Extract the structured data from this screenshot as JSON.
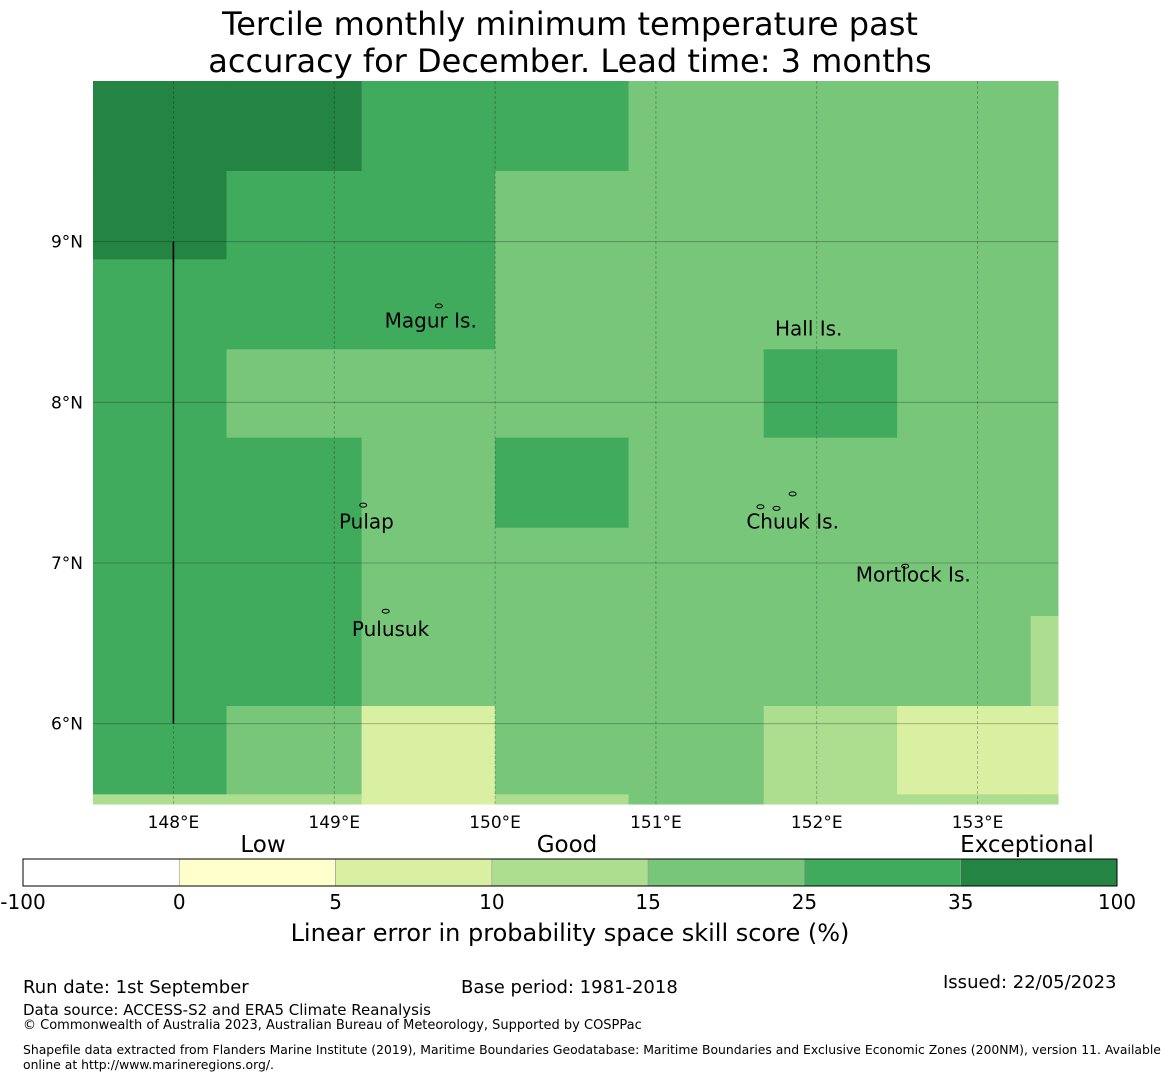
{
  "title": {
    "line1": "Tercile monthly minimum temperature past",
    "line2": "accuracy for December. Lead time: 3 months"
  },
  "map": {
    "lat_ticks": [
      "9°N",
      "8°N",
      "7°N",
      "6°N"
    ],
    "lon_ticks": [
      "148°E",
      "149°E",
      "150°E",
      "151°E",
      "152°E",
      "153°E"
    ],
    "lon_values": [
      148,
      149,
      150,
      151,
      152,
      153
    ],
    "lat_values": [
      9,
      8,
      7,
      6
    ],
    "lon_range": [
      147.5,
      153.5
    ],
    "lat_range": [
      5.5,
      10.0
    ],
    "places": [
      {
        "name": "Magur Is.",
        "lon": 149.6,
        "lat": 8.5
      },
      {
        "name": "Hall Is.",
        "lon": 151.95,
        "lat": 8.45
      },
      {
        "name": "Pulap",
        "lon": 149.2,
        "lat": 7.25
      },
      {
        "name": "Chuuk Is.",
        "lon": 151.85,
        "lat": 7.25
      },
      {
        "name": "Mortlock Is.",
        "lon": 152.6,
        "lat": 6.92
      },
      {
        "name": "Pulusuk",
        "lon": 149.35,
        "lat": 6.58
      }
    ],
    "cell_classes": {
      "note": "skill class per cell: 6=35-100, 5=25-35, 4=15-25, 3=10-15, 2=5-10",
      "lon_edges": [
        147.5,
        148.33,
        149.17,
        150.0,
        150.83,
        151.67,
        152.5,
        153.33,
        153.5
      ],
      "lat_edges": [
        10.0,
        9.44,
        8.89,
        8.33,
        7.78,
        7.22,
        6.67,
        6.11,
        5.56,
        5.5
      ],
      "rows": [
        [
          6,
          6,
          5,
          5,
          4,
          4,
          4,
          4
        ],
        [
          6,
          5,
          5,
          4,
          4,
          4,
          4,
          4
        ],
        [
          5,
          5,
          5,
          4,
          4,
          4,
          4,
          4
        ],
        [
          5,
          4,
          4,
          4,
          4,
          5,
          4,
          4
        ],
        [
          5,
          5,
          4,
          5,
          4,
          4,
          4,
          4
        ],
        [
          5,
          5,
          4,
          4,
          4,
          4,
          4,
          4
        ],
        [
          5,
          5,
          4,
          4,
          4,
          4,
          4,
          3
        ],
        [
          5,
          4,
          2,
          4,
          4,
          3,
          2,
          2
        ],
        [
          3,
          3,
          2,
          3,
          4,
          3,
          3,
          3
        ]
      ]
    }
  },
  "colorbar": {
    "ticks": [
      "-100",
      "0",
      "5",
      "10",
      "15",
      "25",
      "35",
      "100"
    ],
    "colors": [
      "#ffffff",
      "#ffffcc",
      "#d9f0a3",
      "#addd8e",
      "#78c679",
      "#41ab5d",
      "#238443"
    ],
    "labels": {
      "low": "Low",
      "good": "Good",
      "exceptional": "Exceptional"
    },
    "title": "Linear error in probability space skill score (%)"
  },
  "footer": {
    "run_date": "Run date: 1st September",
    "base_period": "Base period: 1981-2018",
    "issued": "Issued: 22/05/2023",
    "data_source": "Data source: ACCESS-S2 and ERA5 Climate Reanalysis",
    "copyright": "© Commonwealth of Australia 2023, Australian Bureau of Meteorology, Supported by COSPPac",
    "shapefile_line1": "Shapefile data extracted from Flanders Marine Institute (2019), Maritime Boundaries Geodatabase: Maritime Boundaries and Exclusive Economic Zones (200NM), version 11. Available",
    "shapefile_line2": "online at http://www.marineregions.org/."
  }
}
